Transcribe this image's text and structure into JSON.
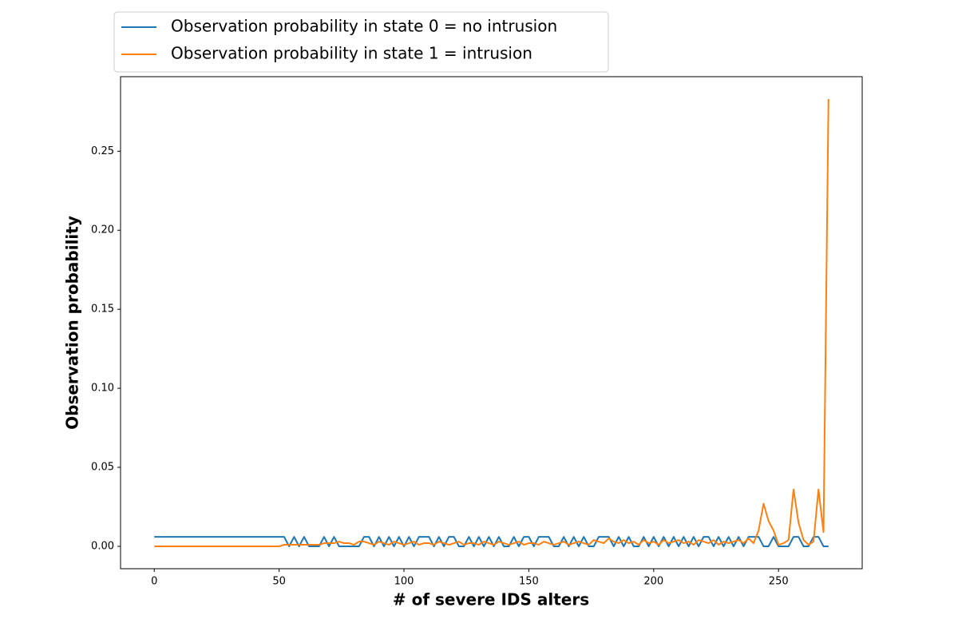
{
  "chart_data": {
    "type": "line",
    "xlabel": "# of severe IDS alters",
    "ylabel": "Observation probability",
    "legend": "upper left outside",
    "x": [
      0,
      50,
      52,
      54,
      56,
      58,
      60,
      62,
      64,
      66,
      68,
      70,
      72,
      74,
      76,
      78,
      80,
      82,
      84,
      86,
      88,
      90,
      92,
      94,
      96,
      98,
      100,
      102,
      104,
      106,
      108,
      110,
      112,
      114,
      116,
      118,
      120,
      122,
      124,
      126,
      128,
      130,
      132,
      134,
      136,
      138,
      140,
      142,
      144,
      146,
      148,
      150,
      152,
      154,
      156,
      158,
      160,
      162,
      164,
      166,
      168,
      170,
      172,
      174,
      176,
      178,
      180,
      182,
      184,
      186,
      188,
      190,
      192,
      194,
      196,
      198,
      200,
      202,
      204,
      206,
      208,
      210,
      212,
      214,
      216,
      218,
      220,
      222,
      224,
      226,
      228,
      230,
      232,
      234,
      236,
      238,
      240,
      242,
      244,
      246,
      248,
      250,
      252,
      254,
      256,
      258,
      260,
      262,
      264,
      266,
      268,
      270
    ],
    "series": [
      {
        "name": "Observation probability in state 0 = no intrusion",
        "color": "#1f77b4",
        "values": [
          0.006,
          0.006,
          0.006,
          0,
          0.006,
          0,
          0.006,
          0,
          0,
          0,
          0.006,
          0,
          0.006,
          0,
          0,
          0,
          0,
          0,
          0.006,
          0.006,
          0,
          0.006,
          0,
          0.006,
          0,
          0.006,
          0,
          0.006,
          0,
          0.006,
          0.006,
          0.006,
          0,
          0.006,
          0,
          0.006,
          0.006,
          0,
          0,
          0.006,
          0,
          0.006,
          0,
          0.006,
          0,
          0.006,
          0,
          0,
          0.006,
          0,
          0.006,
          0.006,
          0,
          0.006,
          0.006,
          0.006,
          0,
          0,
          0.006,
          0,
          0.006,
          0,
          0.006,
          0,
          0,
          0.006,
          0.006,
          0.006,
          0,
          0.006,
          0,
          0.006,
          0,
          0,
          0.006,
          0,
          0.006,
          0,
          0.006,
          0,
          0.006,
          0,
          0.006,
          0,
          0.006,
          0,
          0.006,
          0.006,
          0,
          0.006,
          0,
          0.006,
          0,
          0.006,
          0,
          0.006,
          0.006,
          0.006,
          0,
          0,
          0.006,
          0,
          0,
          0,
          0.006,
          0.006,
          0,
          0,
          0.006,
          0.006,
          0,
          0
        ]
      },
      {
        "name": "Observation probability in state 1 = intrusion",
        "color": "#ff7f0e",
        "values": [
          0,
          0,
          0.001,
          0.001,
          0.001,
          0.001,
          0.001,
          0.001,
          0.001,
          0.001,
          0.002,
          0.002,
          0.002,
          0.003,
          0.002,
          0.002,
          0.001,
          0.003,
          0.003,
          0.002,
          0.001,
          0.003,
          0.002,
          0.001,
          0.003,
          0.002,
          0.001,
          0.002,
          0.003,
          0.001,
          0.002,
          0.002,
          0.001,
          0.003,
          0.002,
          0.001,
          0.002,
          0.003,
          0.001,
          0.002,
          0.002,
          0.001,
          0.003,
          0.002,
          0.001,
          0.003,
          0.002,
          0.001,
          0.002,
          0.003,
          0.001,
          0.002,
          0.002,
          0.001,
          0.003,
          0.002,
          0.001,
          0.002,
          0.003,
          0.001,
          0.002,
          0.003,
          0.002,
          0.001,
          0.004,
          0.003,
          0.002,
          0.005,
          0.003,
          0.002,
          0.004,
          0.002,
          0.003,
          0.001,
          0.004,
          0.002,
          0.003,
          0.001,
          0.004,
          0.002,
          0.003,
          0.004,
          0.002,
          0.003,
          0.001,
          0.004,
          0.003,
          0.002,
          0.004,
          0.001,
          0.003,
          0.002,
          0.003,
          0.004,
          0.002,
          0.005,
          0.002,
          0.01,
          0.027,
          0.016,
          0.01,
          0.001,
          0.002,
          0.004,
          0.036,
          0.015,
          0.004,
          0.001,
          0.003,
          0.036,
          0.009,
          0.283
        ]
      }
    ],
    "xlim": [
      -13.5,
      283.5
    ],
    "ylim": [
      -0.01415,
      0.29715
    ],
    "xticks": [
      0,
      50,
      100,
      150,
      200,
      250
    ],
    "yticks": [
      {
        "value": 0,
        "label": "0.00"
      },
      0.05,
      {
        "value": 0.1,
        "label": "0.10"
      },
      0.15,
      {
        "value": 0.2,
        "label": "0.20"
      },
      0.25
    ]
  }
}
